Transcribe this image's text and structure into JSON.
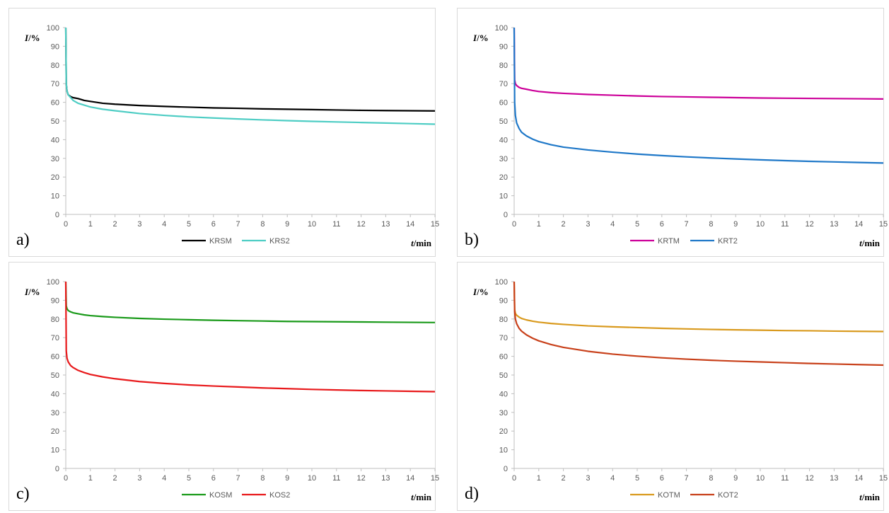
{
  "chart_data": [
    {
      "type": "line",
      "panel_label": "a)",
      "ylabel_var": "I",
      "ylabel_unit": "/%",
      "xlabel_var": "t",
      "xlabel_unit": "/min",
      "xlim": [
        0,
        15
      ],
      "ylim": [
        0,
        100
      ],
      "xticks": [
        "0",
        "1",
        "2",
        "3",
        "4",
        "5",
        "6",
        "7",
        "8",
        "9",
        "10",
        "11",
        "12",
        "13",
        "14",
        "15"
      ],
      "yticks": [
        "0",
        "10",
        "20",
        "30",
        "40",
        "50",
        "60",
        "70",
        "80",
        "90",
        "100"
      ],
      "grid": false,
      "legend": "bottom-center",
      "series": [
        {
          "name": "KRSM",
          "color": "#000000",
          "x": [
            0,
            0.02,
            0.05,
            0.1,
            0.2,
            0.3,
            0.5,
            0.75,
            1,
            1.5,
            2,
            3,
            4,
            5,
            6,
            7,
            8,
            9,
            10,
            11,
            12,
            13,
            14,
            15
          ],
          "y": [
            100,
            70,
            66,
            64,
            63,
            62.5,
            62,
            61,
            60.5,
            59.5,
            59,
            58.3,
            57.8,
            57.4,
            57,
            56.8,
            56.5,
            56.3,
            56.1,
            55.9,
            55.7,
            55.6,
            55.5,
            55.4
          ]
        },
        {
          "name": "KRS2",
          "color": "#4ecdc4",
          "x": [
            0,
            0.02,
            0.05,
            0.1,
            0.2,
            0.3,
            0.5,
            0.75,
            1,
            1.5,
            2,
            3,
            4,
            5,
            6,
            7,
            8,
            9,
            10,
            11,
            12,
            13,
            14,
            15
          ],
          "y": [
            100,
            70,
            66,
            64,
            62.5,
            61,
            59.5,
            58.5,
            57.5,
            56.3,
            55.5,
            54,
            53,
            52.2,
            51.6,
            51.1,
            50.6,
            50.2,
            49.8,
            49.5,
            49.2,
            48.9,
            48.6,
            48.3
          ]
        }
      ]
    },
    {
      "type": "line",
      "panel_label": "b)",
      "ylabel_var": "I",
      "ylabel_unit": "/%",
      "xlabel_var": "t",
      "xlabel_unit": "/min",
      "xlim": [
        0,
        15
      ],
      "ylim": [
        0,
        100
      ],
      "xticks": [
        "0",
        "1",
        "2",
        "3",
        "4",
        "5",
        "6",
        "7",
        "8",
        "9",
        "10",
        "11",
        "12",
        "13",
        "14",
        "15"
      ],
      "yticks": [
        "0",
        "10",
        "20",
        "30",
        "40",
        "50",
        "60",
        "70",
        "80",
        "90",
        "100"
      ],
      "grid": false,
      "legend": "bottom-center",
      "series": [
        {
          "name": "KRTM",
          "color": "#cc0099",
          "x": [
            0,
            0.02,
            0.05,
            0.1,
            0.2,
            0.3,
            0.5,
            0.75,
            1,
            1.5,
            2,
            3,
            4,
            5,
            6,
            7,
            8,
            9,
            10,
            11,
            12,
            13,
            14,
            15
          ],
          "y": [
            100,
            72,
            70,
            69,
            68,
            67.5,
            67,
            66.3,
            65.8,
            65.2,
            64.8,
            64.2,
            63.8,
            63.4,
            63.1,
            62.9,
            62.7,
            62.5,
            62.3,
            62.2,
            62.1,
            62,
            61.9,
            61.8
          ]
        },
        {
          "name": "KRT2",
          "color": "#1f78c8",
          "x": [
            0,
            0.02,
            0.05,
            0.1,
            0.2,
            0.3,
            0.5,
            0.75,
            1,
            1.5,
            2,
            3,
            4,
            5,
            6,
            7,
            8,
            9,
            10,
            11,
            12,
            13,
            14,
            15
          ],
          "y": [
            100,
            60,
            53,
            49,
            46,
            44,
            42,
            40.3,
            39,
            37.3,
            36,
            34.5,
            33.3,
            32.3,
            31.5,
            30.8,
            30.2,
            29.7,
            29.2,
            28.8,
            28.4,
            28.1,
            27.8,
            27.5
          ]
        }
      ]
    },
    {
      "type": "line",
      "panel_label": "c)",
      "ylabel_var": "I",
      "ylabel_unit": "/%",
      "xlabel_var": "t",
      "xlabel_unit": "/min",
      "xlim": [
        0,
        15
      ],
      "ylim": [
        0,
        100
      ],
      "xticks": [
        "0",
        "1",
        "2",
        "3",
        "4",
        "5",
        "6",
        "7",
        "8",
        "9",
        "10",
        "11",
        "12",
        "13",
        "14",
        "15"
      ],
      "yticks": [
        "0",
        "10",
        "20",
        "30",
        "40",
        "50",
        "60",
        "70",
        "80",
        "90",
        "100"
      ],
      "grid": false,
      "legend": "bottom-center",
      "series": [
        {
          "name": "KOSM",
          "color": "#1a9a1a",
          "x": [
            0,
            0.02,
            0.05,
            0.1,
            0.2,
            0.3,
            0.5,
            0.75,
            1,
            1.5,
            2,
            3,
            4,
            5,
            6,
            7,
            8,
            9,
            10,
            11,
            12,
            13,
            14,
            15
          ],
          "y": [
            100,
            87,
            85.5,
            84.5,
            83.8,
            83.3,
            82.8,
            82.2,
            81.8,
            81.3,
            80.9,
            80.3,
            79.9,
            79.6,
            79.3,
            79.1,
            78.9,
            78.7,
            78.6,
            78.5,
            78.4,
            78.3,
            78.2,
            78.1
          ]
        },
        {
          "name": "KOS2",
          "color": "#e8191b",
          "x": [
            0,
            0.02,
            0.05,
            0.1,
            0.2,
            0.3,
            0.5,
            0.75,
            1,
            1.5,
            2,
            3,
            4,
            5,
            6,
            7,
            8,
            9,
            10,
            11,
            12,
            13,
            14,
            15
          ],
          "y": [
            100,
            63,
            59,
            57,
            55,
            54,
            52.5,
            51.3,
            50.3,
            49,
            48,
            46.5,
            45.5,
            44.7,
            44.1,
            43.6,
            43.1,
            42.7,
            42.3,
            42,
            41.7,
            41.5,
            41.3,
            41.1
          ]
        }
      ]
    },
    {
      "type": "line",
      "panel_label": "d)",
      "ylabel_var": "I",
      "ylabel_unit": "/%",
      "xlabel_var": "t",
      "xlabel_unit": "/min",
      "xlim": [
        0,
        15
      ],
      "ylim": [
        0,
        100
      ],
      "xticks": [
        "0",
        "1",
        "2",
        "3",
        "4",
        "5",
        "6",
        "7",
        "8",
        "9",
        "10",
        "11",
        "12",
        "13",
        "14",
        "15"
      ],
      "yticks": [
        "0",
        "10",
        "20",
        "30",
        "40",
        "50",
        "60",
        "70",
        "80",
        "90",
        "100"
      ],
      "grid": false,
      "legend": "bottom-center",
      "series": [
        {
          "name": "KOTM",
          "color": "#d99a1e",
          "x": [
            0,
            0.02,
            0.05,
            0.1,
            0.2,
            0.3,
            0.5,
            0.75,
            1,
            1.5,
            2,
            3,
            4,
            5,
            6,
            7,
            8,
            9,
            10,
            11,
            12,
            13,
            14,
            15
          ],
          "y": [
            100,
            85,
            83,
            82,
            81,
            80.3,
            79.5,
            78.8,
            78.3,
            77.6,
            77.1,
            76.3,
            75.8,
            75.4,
            75,
            74.7,
            74.4,
            74.2,
            74,
            73.8,
            73.7,
            73.5,
            73.4,
            73.3
          ]
        },
        {
          "name": "KOT2",
          "color": "#c8401a",
          "x": [
            0,
            0.02,
            0.05,
            0.1,
            0.2,
            0.3,
            0.5,
            0.75,
            1,
            1.5,
            2,
            3,
            4,
            5,
            6,
            7,
            8,
            9,
            10,
            11,
            12,
            13,
            14,
            15
          ],
          "y": [
            100,
            84,
            80,
            77.5,
            75,
            73.5,
            71.5,
            69.7,
            68.3,
            66.3,
            64.8,
            62.7,
            61.2,
            60.1,
            59.2,
            58.5,
            57.9,
            57.4,
            57,
            56.6,
            56.2,
            55.9,
            55.6,
            55.3
          ]
        }
      ]
    }
  ]
}
